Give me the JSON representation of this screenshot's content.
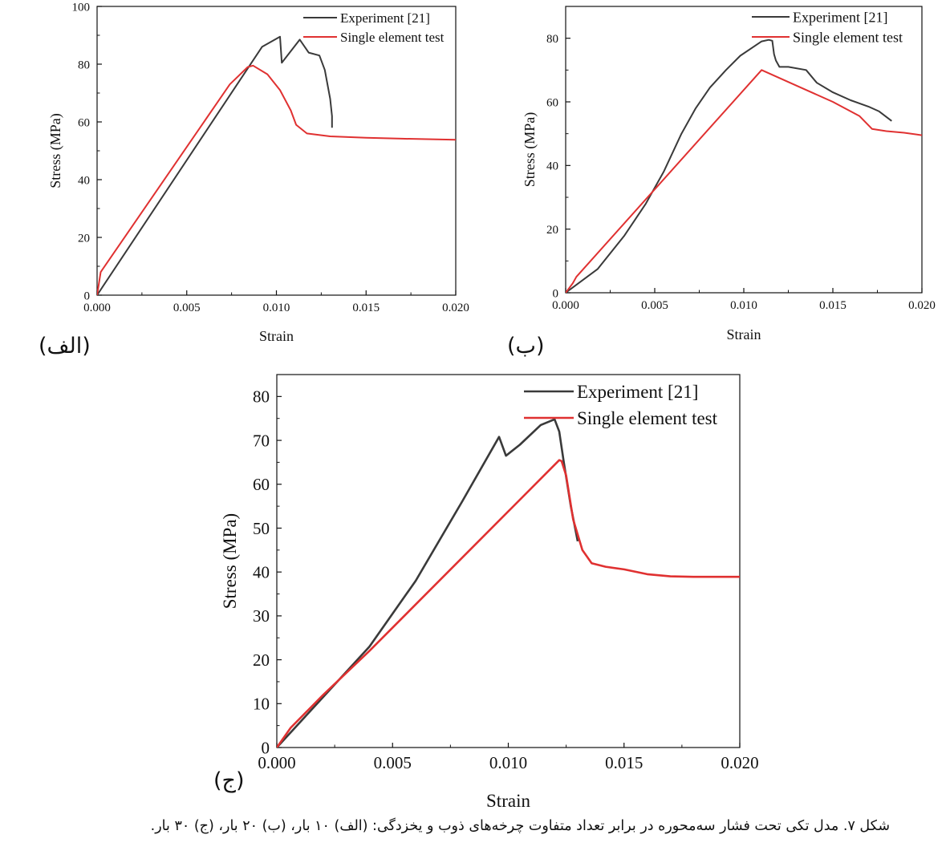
{
  "caption": "شکل ۷. مدل تکی تحت فشار سه‌محوره در برابر تعداد متفاوت چرخه‌های ذوب و یخزدگی: (الف) ۱۰ بار، (ب) ۲۰ بار، (ج) ۳۰ بار.",
  "colors": {
    "experiment": "#3a3a3a",
    "single": "#e03131",
    "axis": "#111111"
  },
  "chart_data": [
    {
      "type": "line",
      "panel_label": "(الف)",
      "xlabel": "Strain",
      "ylabel": "Stress (MPa)",
      "xlim": [
        0,
        0.02
      ],
      "ylim": [
        0,
        100
      ],
      "xticks": [
        0,
        0.005,
        0.01,
        0.015,
        0.02
      ],
      "xtick_labels": [
        "0.000",
        "0.005",
        "0.010",
        "0.015",
        "0.020"
      ],
      "yticks": [
        0,
        20,
        40,
        60,
        80,
        100
      ],
      "ytick_labels": [
        "0",
        "20",
        "40",
        "60",
        "80",
        "100"
      ],
      "legend": "top-right",
      "series": [
        {
          "name": "Experiment [21]",
          "color": "experiment",
          "points": [
            [
              0,
              0
            ],
            [
              0.0092,
              86
            ],
            [
              0.0102,
              89.5
            ],
            [
              0.0103,
              80.5
            ],
            [
              0.0113,
              88.5
            ],
            [
              0.0118,
              84
            ],
            [
              0.0124,
              83
            ],
            [
              0.0127,
              78
            ],
            [
              0.013,
              68
            ],
            [
              0.0131,
              62
            ],
            [
              0.0131,
              58
            ]
          ]
        },
        {
          "name": "Single element test",
          "color": "single",
          "points": [
            [
              0,
              0
            ],
            [
              0.0002,
              8
            ],
            [
              0.0074,
              73
            ],
            [
              0.0084,
              79
            ],
            [
              0.0087,
              79.5
            ],
            [
              0.0095,
              76.5
            ],
            [
              0.0102,
              71
            ],
            [
              0.0108,
              64
            ],
            [
              0.0111,
              59
            ],
            [
              0.0117,
              56
            ],
            [
              0.013,
              55
            ],
            [
              0.015,
              54.5
            ],
            [
              0.017,
              54.2
            ],
            [
              0.02,
              53.8
            ]
          ]
        }
      ]
    },
    {
      "type": "line",
      "panel_label": "(ب)",
      "xlabel": "Strain",
      "ylabel": "Stress (MPa)",
      "xlim": [
        0,
        0.02
      ],
      "ylim": [
        0,
        90
      ],
      "xticks": [
        0,
        0.005,
        0.01,
        0.015,
        0.02
      ],
      "xtick_labels": [
        "0.000",
        "0.005",
        "0.010",
        "0.015",
        "0.020"
      ],
      "yticks": [
        0,
        20,
        40,
        60,
        80
      ],
      "ytick_labels": [
        "0",
        "20",
        "40",
        "60",
        "80"
      ],
      "legend": "top-right",
      "series": [
        {
          "name": "Experiment [21]",
          "color": "experiment",
          "points": [
            [
              0,
              0
            ],
            [
              0.0018,
              7.5
            ],
            [
              0.0033,
              18
            ],
            [
              0.0045,
              28
            ],
            [
              0.0055,
              38
            ],
            [
              0.0065,
              50
            ],
            [
              0.0073,
              58
            ],
            [
              0.0081,
              64.5
            ],
            [
              0.009,
              70
            ],
            [
              0.0098,
              74.5
            ],
            [
              0.0106,
              77.5
            ],
            [
              0.011,
              79
            ],
            [
              0.0114,
              79.5
            ],
            [
              0.0116,
              79.2
            ],
            [
              0.0117,
              75
            ],
            [
              0.0118,
              73
            ],
            [
              0.012,
              71
            ],
            [
              0.0125,
              71
            ],
            [
              0.0135,
              70
            ],
            [
              0.0141,
              66
            ],
            [
              0.015,
              63
            ],
            [
              0.016,
              60.5
            ],
            [
              0.017,
              58.5
            ],
            [
              0.0176,
              57
            ],
            [
              0.0183,
              54
            ]
          ]
        },
        {
          "name": "Single element test",
          "color": "single",
          "points": [
            [
              0,
              0
            ],
            [
              0.0004,
              3
            ],
            [
              0.0006,
              5
            ],
            [
              0.011,
              70
            ],
            [
              0.013,
              65
            ],
            [
              0.015,
              60
            ],
            [
              0.0165,
              55.5
            ],
            [
              0.0172,
              51.5
            ],
            [
              0.018,
              50.8
            ],
            [
              0.019,
              50.3
            ],
            [
              0.02,
              49.5
            ]
          ]
        }
      ]
    },
    {
      "type": "line",
      "panel_label": "(ج)",
      "xlabel": "Strain",
      "ylabel": "Stress (MPa)",
      "xlim": [
        0,
        0.02
      ],
      "ylim": [
        0,
        85
      ],
      "xticks": [
        0,
        0.005,
        0.01,
        0.015,
        0.02
      ],
      "xtick_labels": [
        "0.000",
        "0.005",
        "0.010",
        "0.015",
        "0.020"
      ],
      "yticks": [
        0,
        10,
        20,
        30,
        40,
        50,
        60,
        70,
        80
      ],
      "ytick_labels": [
        "0",
        "10",
        "20",
        "30",
        "40",
        "50",
        "60",
        "70",
        "80"
      ],
      "legend": "top-right",
      "series": [
        {
          "name": "Experiment [21]",
          "color": "experiment",
          "points": [
            [
              0,
              0
            ],
            [
              0.002,
              11.5
            ],
            [
              0.004,
              23
            ],
            [
              0.006,
              38
            ],
            [
              0.008,
              56
            ],
            [
              0.0096,
              70.8
            ],
            [
              0.0099,
              66.5
            ],
            [
              0.0105,
              69
            ],
            [
              0.0114,
              73.5
            ],
            [
              0.012,
              74.8
            ],
            [
              0.0122,
              72
            ],
            [
              0.0124,
              65
            ],
            [
              0.0127,
              55
            ],
            [
              0.013,
              47
            ]
          ]
        },
        {
          "name": "Single element test",
          "color": "single",
          "points": [
            [
              0,
              0
            ],
            [
              0.0006,
              4.5
            ],
            [
              0.002,
              12
            ],
            [
              0.004,
              22
            ],
            [
              0.0122,
              65.5
            ],
            [
              0.0123,
              65.3
            ],
            [
              0.0125,
              62
            ],
            [
              0.0128,
              52
            ],
            [
              0.0132,
              45
            ],
            [
              0.0136,
              42
            ],
            [
              0.0142,
              41.2
            ],
            [
              0.015,
              40.6
            ],
            [
              0.016,
              39.5
            ],
            [
              0.017,
              39
            ],
            [
              0.018,
              38.9
            ],
            [
              0.02,
              38.9
            ]
          ]
        }
      ]
    }
  ]
}
